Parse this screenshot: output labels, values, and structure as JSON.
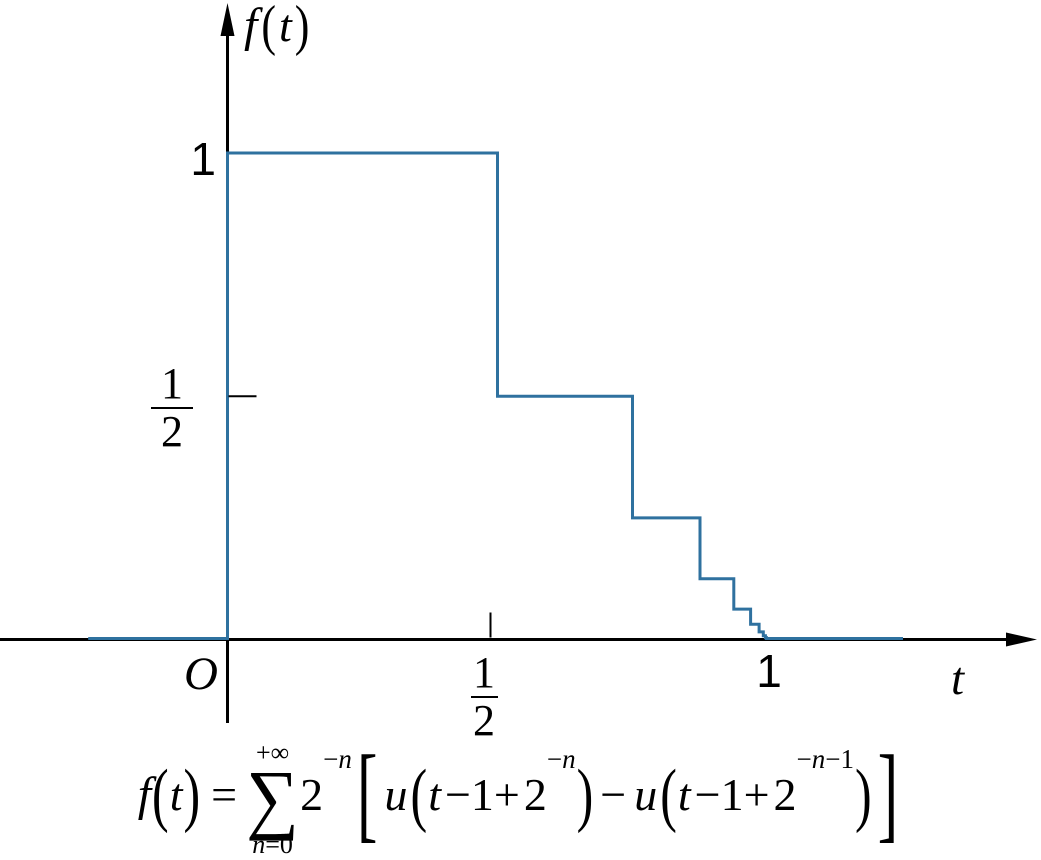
{
  "figure": {
    "background": "#ffffff",
    "axis_color": "#000000",
    "curve_color": "#2f719f",
    "y_axis_title": {
      "f": "f",
      "open": "(",
      "arg": "t",
      "close": ")"
    },
    "x_axis_title": "t",
    "origin_label": "O",
    "y_tick_1": "1",
    "x_tick_1": "1",
    "y_tick_half": {
      "num": "1",
      "den": "2"
    },
    "x_tick_half": {
      "num": "1",
      "den": "2"
    }
  },
  "chart_data": {
    "type": "line",
    "subtype": "staircase-step-function",
    "xlabel": "t",
    "ylabel": "f(t)",
    "xlim": [
      -0.42,
      1.5
    ],
    "ylim": [
      0,
      1.31
    ],
    "x_tick_labels": [
      {
        "value": 0.5,
        "label": "1/2"
      },
      {
        "value": 1,
        "label": "1"
      }
    ],
    "y_tick_labels": [
      {
        "value": 0.5,
        "label": "1/2"
      },
      {
        "value": 1,
        "label": "1"
      }
    ],
    "x_tick_marks": [
      0.5
    ],
    "y_tick_marks": [
      0.5
    ],
    "steps": [
      {
        "n": 0,
        "t_start": 0,
        "t_end": 0.5,
        "value": 1
      },
      {
        "n": 1,
        "t_start": 0.5,
        "t_end": 0.75,
        "value": 0.5
      },
      {
        "n": 2,
        "t_start": 0.75,
        "t_end": 0.875,
        "value": 0.25
      },
      {
        "n": 3,
        "t_start": 0.875,
        "t_end": 0.9375,
        "value": 0.125
      },
      {
        "n": 4,
        "t_start": 0.9375,
        "t_end": 0.96875,
        "value": 0.0625
      },
      {
        "n": 5,
        "t_start": 0.96875,
        "t_end": 0.984375,
        "value": 0.03125
      },
      {
        "n": 6,
        "t_start": 0.984375,
        "t_end": 0.9921875,
        "value": 0.015625
      },
      {
        "n": 7,
        "t_start": 0.9921875,
        "t_end": 0.99609375,
        "value": 0.0078125
      },
      {
        "n": 8,
        "t_start": 0.99609375,
        "t_end": 0.998046875,
        "value": 0.00390625
      },
      {
        "n": 9,
        "t_start": 0.998046875,
        "t_end": 0.9990234375,
        "value": 0.001953125
      }
    ],
    "zero_segments": [
      [
        -0.258,
        0
      ],
      [
        1.0,
        1.251
      ]
    ],
    "annotation": "f(t) = ∑_{n=0}^{+∞} 2^{−n}[u(t−1+2^{−n}) − u(t−1+2^{−n−1})]"
  },
  "formula": {
    "f": "f",
    "lparen": "(",
    "rparen": ")",
    "t": "t",
    "equals": "=",
    "sum_upper": "+∞",
    "sigma": "∑",
    "sum_lower_var": "n",
    "sum_lower_rest": "=0",
    "base2": "2",
    "exp_minus": "−",
    "exp_var": "n",
    "exp2_tail": "−1",
    "u": "u",
    "arg_rest": "−1+",
    "minus": "−",
    "lbracket": "[",
    "rbracket": "]"
  }
}
